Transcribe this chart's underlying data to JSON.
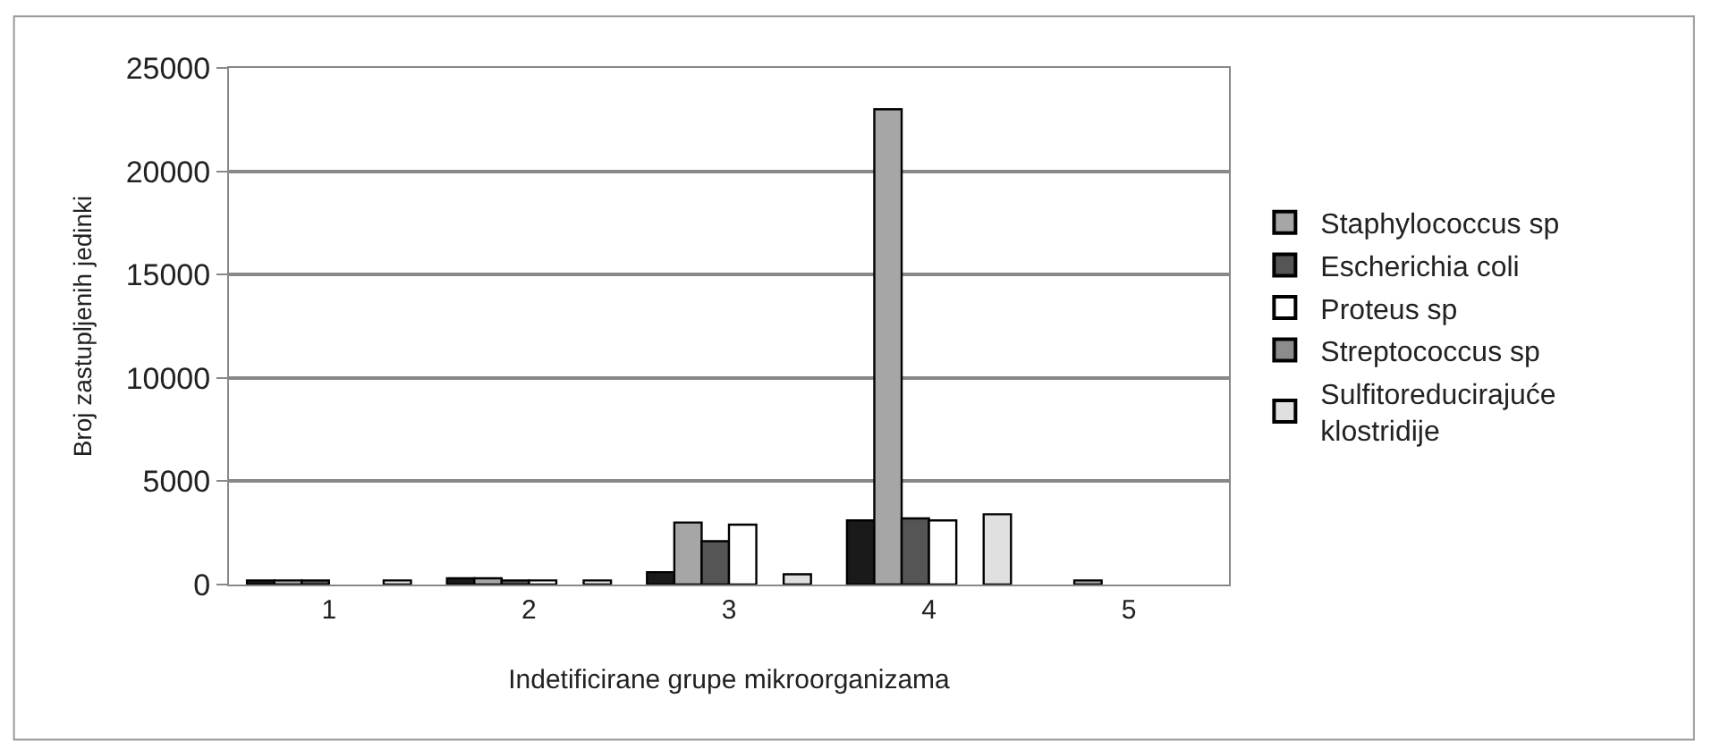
{
  "chart_data": {
    "type": "bar",
    "categories": [
      "1",
      "2",
      "3",
      "4",
      "5"
    ],
    "xlabel": "Indetificirane grupe mikroorganizama",
    "ylabel": "Broj zastupljenih jedinki",
    "ylim": [
      0,
      25000
    ],
    "yticks": [
      0,
      5000,
      10000,
      15000,
      20000,
      25000
    ],
    "grid": "y",
    "legend": "right",
    "series": [
      {
        "color": "#1a1a1a",
        "values": [
          200,
          300,
          600,
          3100,
          null
        ]
      },
      {
        "name": "Staphylococcus sp",
        "color": "#a6a6a6",
        "values": [
          200,
          300,
          3000,
          23000,
          200
        ]
      },
      {
        "name": "Escherichia coli",
        "color": "#555555",
        "values": [
          200,
          200,
          2100,
          3200,
          null
        ]
      },
      {
        "name": "Proteus sp",
        "color": "#ffffff",
        "values": [
          null,
          200,
          2900,
          3100,
          null
        ]
      },
      {
        "name": "Streptococcus sp",
        "color": "#8c8c8c",
        "values": [
          null,
          null,
          null,
          null,
          null
        ]
      },
      {
        "name": "Sulfitoreducirajuće klostridije",
        "color": "#e0e0e0",
        "values": [
          200,
          200,
          500,
          3400,
          null
        ]
      }
    ]
  }
}
